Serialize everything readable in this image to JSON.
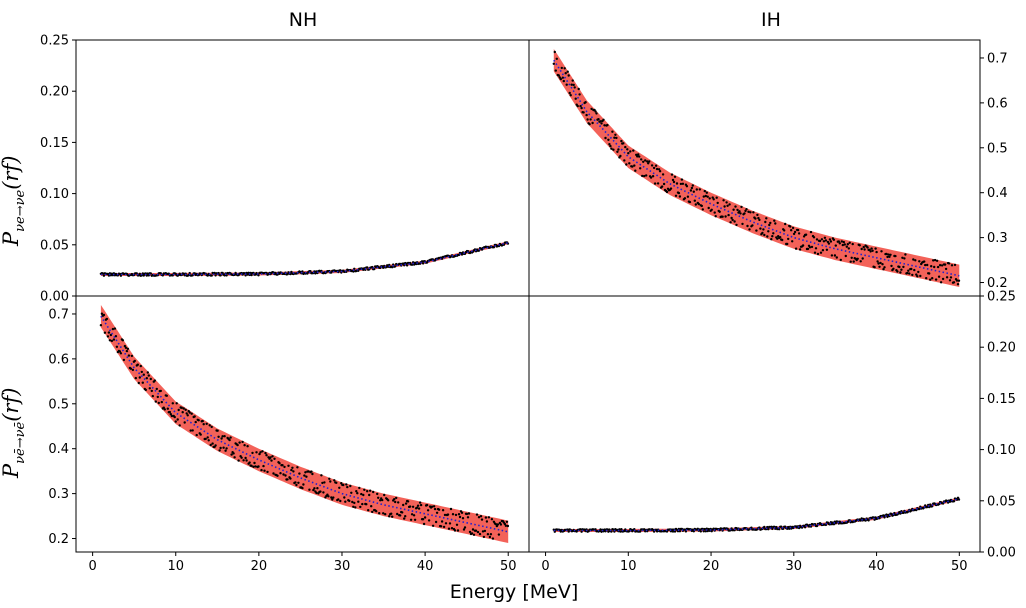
{
  "figure": {
    "col_titles": [
      "NH",
      "IH"
    ],
    "xlabel": "Energy [MeV]",
    "ylabel_top": {
      "base": "P",
      "sub_main": "νe→νe",
      "paren": "(rf)"
    },
    "ylabel_bottom": {
      "base": "P",
      "sub_main": "νē→νē",
      "paren": "(rf)"
    },
    "band_color": "#f25a50",
    "points_color": "#000000",
    "mean_color": "#2020d0"
  },
  "chart_data": [
    {
      "panel": "NH-top",
      "type": "scatter",
      "xlim": [
        -2,
        52.5
      ],
      "ylim": [
        0,
        0.25
      ],
      "xticks": [],
      "yticks": [
        0,
        0.05,
        0.1,
        0.15,
        0.2,
        0.25
      ],
      "ytick_labels": [
        "0.00",
        "0.05",
        "0.10",
        "0.15",
        "0.20",
        "0.25"
      ],
      "ytick_side": "left",
      "curve": {
        "x": [
          1,
          10,
          20,
          30,
          40,
          50
        ],
        "y": [
          0.021,
          0.021,
          0.0215,
          0.024,
          0.033,
          0.052
        ]
      },
      "band_halfwidth": 0.0015,
      "scatter_spread": 0.001
    },
    {
      "panel": "IH-top",
      "type": "scatter",
      "xlim": [
        -2,
        52.5
      ],
      "ylim": [
        0.17,
        0.74
      ],
      "xticks": [],
      "yticks": [
        0.2,
        0.3,
        0.4,
        0.5,
        0.6,
        0.7
      ],
      "ytick_labels": [
        "0.2",
        "0.3",
        "0.4",
        "0.5",
        "0.6",
        "0.7"
      ],
      "ytick_side": "right",
      "curve": {
        "x": [
          1,
          5,
          10,
          15,
          20,
          25,
          30,
          35,
          40,
          45,
          50
        ],
        "y": [
          0.695,
          0.58,
          0.48,
          0.42,
          0.375,
          0.335,
          0.3,
          0.275,
          0.255,
          0.235,
          0.215
        ]
      },
      "band_halfwidth": 0.025,
      "scatter_spread": 0.018
    },
    {
      "panel": "NH-bottom",
      "type": "scatter",
      "xlim": [
        -2,
        52.5
      ],
      "ylim": [
        0.17,
        0.74
      ],
      "xticks": [
        0,
        10,
        20,
        30,
        40,
        50
      ],
      "xtick_labels": [
        "0",
        "10",
        "20",
        "30",
        "40",
        "50"
      ],
      "yticks": [
        0.2,
        0.3,
        0.4,
        0.5,
        0.6,
        0.7
      ],
      "ytick_labels": [
        "0.2",
        "0.3",
        "0.4",
        "0.5",
        "0.6",
        "0.7"
      ],
      "ytick_side": "left",
      "curve": {
        "x": [
          1,
          5,
          10,
          15,
          20,
          25,
          30,
          35,
          40,
          45,
          50
        ],
        "y": [
          0.695,
          0.58,
          0.48,
          0.42,
          0.375,
          0.335,
          0.3,
          0.275,
          0.255,
          0.235,
          0.215
        ]
      },
      "band_halfwidth": 0.025,
      "scatter_spread": 0.018
    },
    {
      "panel": "IH-bottom",
      "type": "scatter",
      "xlim": [
        -2,
        52.5
      ],
      "ylim": [
        0,
        0.25
      ],
      "xticks": [
        0,
        10,
        20,
        30,
        40,
        50
      ],
      "xtick_labels": [
        "0",
        "10",
        "20",
        "30",
        "40",
        "50"
      ],
      "yticks": [
        0,
        0.05,
        0.1,
        0.15,
        0.2,
        0.25
      ],
      "ytick_labels": [
        "0.00",
        "0.05",
        "0.10",
        "0.15",
        "0.20",
        "0.25"
      ],
      "ytick_side": "right",
      "curve": {
        "x": [
          1,
          10,
          20,
          30,
          40,
          50
        ],
        "y": [
          0.021,
          0.021,
          0.0215,
          0.024,
          0.033,
          0.052
        ]
      },
      "band_halfwidth": 0.0015,
      "scatter_spread": 0.001
    }
  ]
}
